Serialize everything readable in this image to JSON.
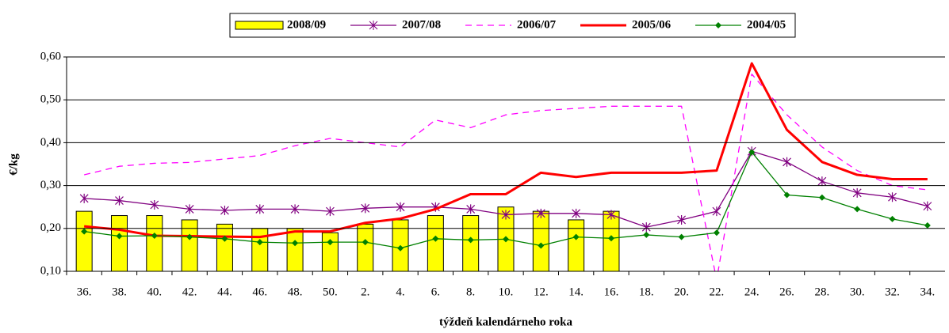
{
  "chart_data": {
    "type": "line",
    "y_label": "€/kg",
    "x_label": "týždeň kalendárneho roka",
    "categories": [
      "36.",
      "38.",
      "40.",
      "42.",
      "44.",
      "46.",
      "48.",
      "50.",
      "2.",
      "4.",
      "6.",
      "8.",
      "10.",
      "12.",
      "14.",
      "16.",
      "18.",
      "20.",
      "22.",
      "24.",
      "26.",
      "28.",
      "30.",
      "32.",
      "34."
    ],
    "ylim": [
      0.1,
      0.6
    ],
    "yticks": [
      {
        "value": 0.1,
        "label": "0,10"
      },
      {
        "value": 0.2,
        "label": "0,20"
      },
      {
        "value": 0.3,
        "label": "0,30"
      },
      {
        "value": 0.4,
        "label": "0,40"
      },
      {
        "value": 0.5,
        "label": "0,50"
      },
      {
        "value": 0.6,
        "label": "0,60"
      }
    ],
    "grid": true,
    "legend": "top",
    "series": [
      {
        "name": "2008/09",
        "type": "bar",
        "color": "#ffff00",
        "values": [
          0.24,
          0.23,
          0.23,
          0.22,
          0.21,
          0.2,
          0.2,
          0.19,
          0.21,
          0.22,
          0.23,
          0.23,
          0.25,
          0.24,
          0.22,
          0.24,
          null,
          null,
          null,
          null,
          null,
          null,
          null,
          null,
          null
        ]
      },
      {
        "name": "2007/08",
        "type": "line",
        "color": "#800080",
        "marker": "star",
        "values": [
          0.27,
          0.265,
          0.255,
          0.245,
          0.242,
          0.245,
          0.245,
          0.24,
          0.247,
          0.25,
          0.25,
          0.245,
          0.232,
          0.235,
          0.235,
          0.232,
          0.203,
          0.22,
          0.24,
          0.38,
          0.355,
          0.31,
          0.283,
          0.273,
          0.252
        ]
      },
      {
        "name": "2006/07",
        "type": "line",
        "color": "#ff00ff",
        "dash": true,
        "values": [
          0.325,
          0.345,
          0.352,
          0.354,
          0.362,
          0.37,
          0.393,
          0.41,
          0.4,
          0.39,
          0.453,
          0.435,
          0.465,
          0.475,
          0.48,
          0.485,
          0.485,
          0.485,
          0.08,
          0.56,
          0.465,
          0.39,
          0.335,
          0.3,
          0.29
        ]
      },
      {
        "name": "2005/06",
        "type": "line",
        "color": "#ff0000",
        "width": 3,
        "values": [
          0.205,
          0.197,
          0.183,
          0.182,
          0.181,
          0.18,
          0.193,
          0.193,
          0.213,
          0.223,
          0.245,
          0.28,
          0.28,
          0.33,
          0.32,
          0.33,
          0.33,
          0.33,
          0.335,
          0.585,
          0.43,
          0.355,
          0.325,
          0.315,
          0.315
        ]
      },
      {
        "name": "2004/05",
        "type": "line",
        "color": "#008000",
        "marker": "diamond",
        "values": [
          0.193,
          0.182,
          0.183,
          0.18,
          0.176,
          0.168,
          0.166,
          0.168,
          0.168,
          0.154,
          0.176,
          0.173,
          0.175,
          0.16,
          0.18,
          0.177,
          0.185,
          0.18,
          0.19,
          0.378,
          0.278,
          0.272,
          0.245,
          0.222,
          0.207
        ]
      }
    ]
  }
}
